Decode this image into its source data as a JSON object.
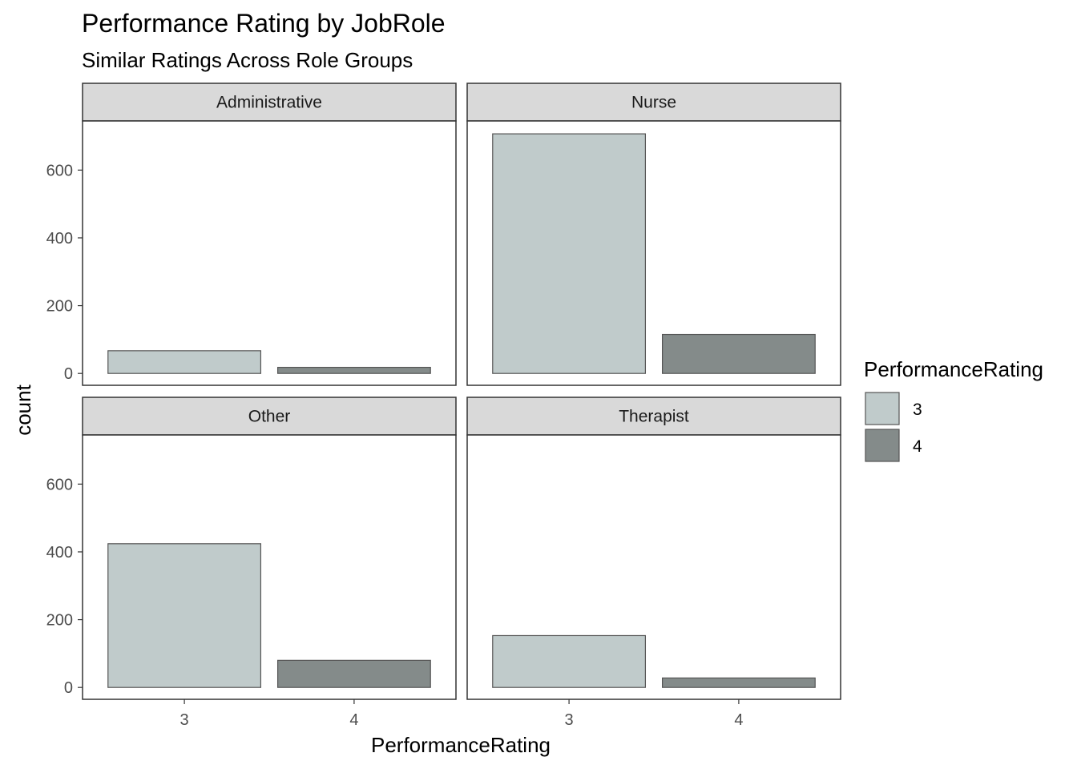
{
  "chart_data": {
    "type": "bar",
    "title": "Performance Rating by JobRole",
    "subtitle": "Similar Ratings Across Role Groups",
    "xlabel": "PerformanceRating",
    "ylabel": "count",
    "categories": [
      "3",
      "4"
    ],
    "y_ticks": [
      0,
      200,
      400,
      600
    ],
    "ylim": [
      -35,
      745
    ],
    "grid": false,
    "facet_layout": "2x2",
    "legend": {
      "title": "PerformanceRating",
      "placement": "right",
      "items": [
        {
          "label": "3",
          "color": "#c0cbcb"
        },
        {
          "label": "4",
          "color": "#848b8a"
        }
      ]
    },
    "colors": {
      "3": "#c0cbcb",
      "4": "#848b8a",
      "bar_outline": "#555555",
      "strip_fill": "#d9d9d9",
      "panel_border": "#333333"
    },
    "facets": [
      {
        "name": "Administrative",
        "values": [
          67,
          18
        ]
      },
      {
        "name": "Nurse",
        "values": [
          707,
          115
        ]
      },
      {
        "name": "Other",
        "values": [
          424,
          80
        ]
      },
      {
        "name": "Therapist",
        "values": [
          153,
          28
        ]
      }
    ]
  }
}
